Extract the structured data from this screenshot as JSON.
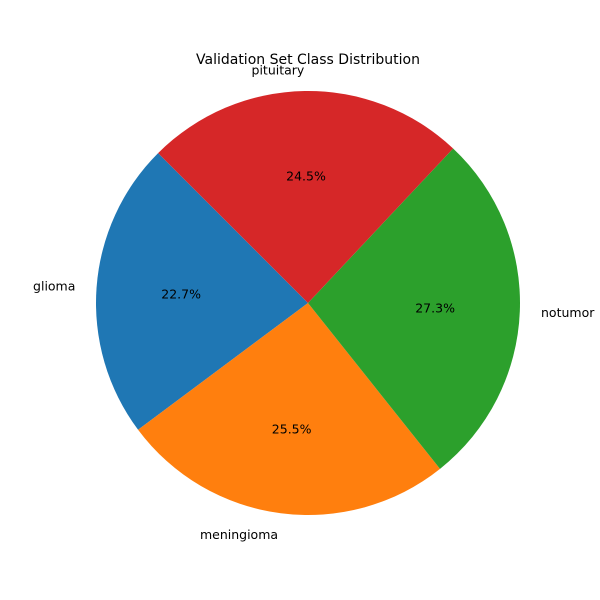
{
  "chart_data": {
    "type": "pie",
    "title": "Validation Set Class Distribution",
    "start_angle_deg": 135,
    "direction": "counterclockwise",
    "slices": [
      {
        "label": "glioma",
        "value": 22.7,
        "pct_label": "22.7%",
        "color": "#1f77b4"
      },
      {
        "label": "meningioma",
        "value": 25.5,
        "pct_label": "25.5%",
        "color": "#ff7f0e"
      },
      {
        "label": "notumor",
        "value": 27.3,
        "pct_label": "27.3%",
        "color": "#2ca02c"
      },
      {
        "label": "pituitary",
        "value": 24.5,
        "pct_label": "24.5%",
        "color": "#d62728"
      }
    ]
  }
}
